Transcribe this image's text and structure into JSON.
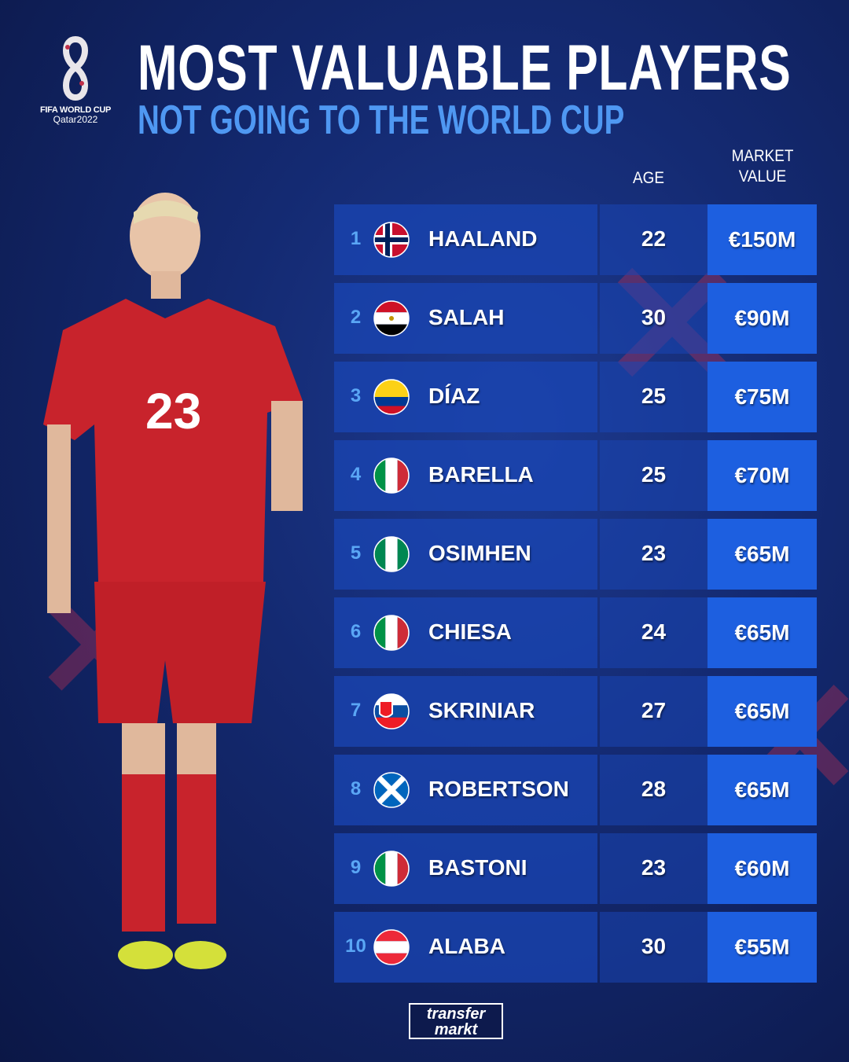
{
  "logo": {
    "line1": "FIFA WORLD CUP",
    "line2": "Qatar2022"
  },
  "title": "MOST VALUABLE PLAYERS",
  "subtitle": "NOT GOING TO THE WORLD CUP",
  "headers": {
    "age": "AGE",
    "market_value_1": "MARKET",
    "market_value_2": "VALUE"
  },
  "players": [
    {
      "rank": "1",
      "flag": "flag-norway",
      "name": "HAALAND",
      "age": "22",
      "value": "€150M"
    },
    {
      "rank": "2",
      "flag": "flag-egypt",
      "name": "SALAH",
      "age": "30",
      "value": "€90M"
    },
    {
      "rank": "3",
      "flag": "flag-colombia",
      "name": "DÍAZ",
      "age": "25",
      "value": "€75M"
    },
    {
      "rank": "4",
      "flag": "flag-italy",
      "name": "BARELLA",
      "age": "25",
      "value": "€70M"
    },
    {
      "rank": "5",
      "flag": "flag-nigeria",
      "name": "OSIMHEN",
      "age": "23",
      "value": "€65M"
    },
    {
      "rank": "6",
      "flag": "flag-italy",
      "name": "CHIESA",
      "age": "24",
      "value": "€65M"
    },
    {
      "rank": "7",
      "flag": "flag-slovakia",
      "name": "SKRINIAR",
      "age": "27",
      "value": "€65M"
    },
    {
      "rank": "8",
      "flag": "flag-scotland",
      "name": "ROBERTSON",
      "age": "28",
      "value": "€65M"
    },
    {
      "rank": "9",
      "flag": "flag-italy",
      "name": "BASTONI",
      "age": "23",
      "value": "€60M"
    },
    {
      "rank": "10",
      "flag": "flag-austria",
      "name": "ALABA",
      "age": "30",
      "value": "€55M"
    }
  ],
  "footer": {
    "brand_line1": "transfer",
    "brand_line2": "markt"
  },
  "player_photo": {
    "shirt_number": "23"
  },
  "colors": {
    "accent": "#1d5fe0",
    "subtitle": "#4f98f2",
    "rank": "#5aa6f5",
    "background": "#142a72"
  }
}
